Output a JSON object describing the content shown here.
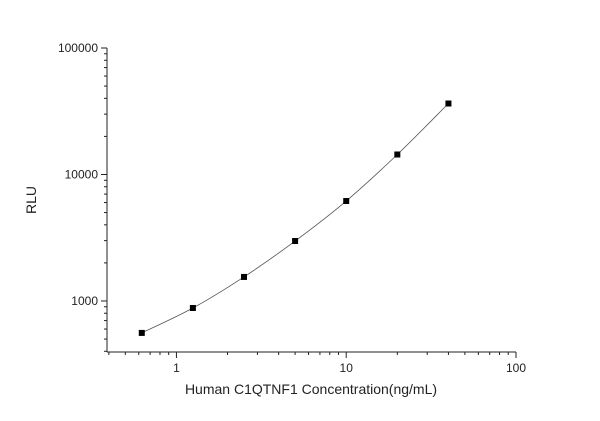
{
  "chart_data": {
    "type": "line",
    "title": "",
    "xlabel": "Human C1QTNF1 Concentration(ng/mL)",
    "ylabel": "RLU",
    "x_scale": "log",
    "y_scale": "log",
    "xlim": [
      0.39,
      100
    ],
    "ylim": [
      395,
      100000
    ],
    "x_ticks": [
      1,
      10,
      100
    ],
    "x_tick_labels": [
      "1",
      "10",
      "100"
    ],
    "y_ticks": [
      1000,
      10000,
      100000
    ],
    "y_tick_labels": [
      "1000",
      "10000",
      "100000"
    ],
    "grid": false,
    "marker": "square",
    "colors": {
      "marker": "#000000",
      "line": "#555555"
    },
    "series": [
      {
        "x": [
          0.625,
          1.25,
          2.5,
          5,
          10,
          20,
          40
        ],
        "y": [
          559,
          880,
          1549,
          2979,
          6170,
          14390,
          36400
        ]
      }
    ]
  }
}
